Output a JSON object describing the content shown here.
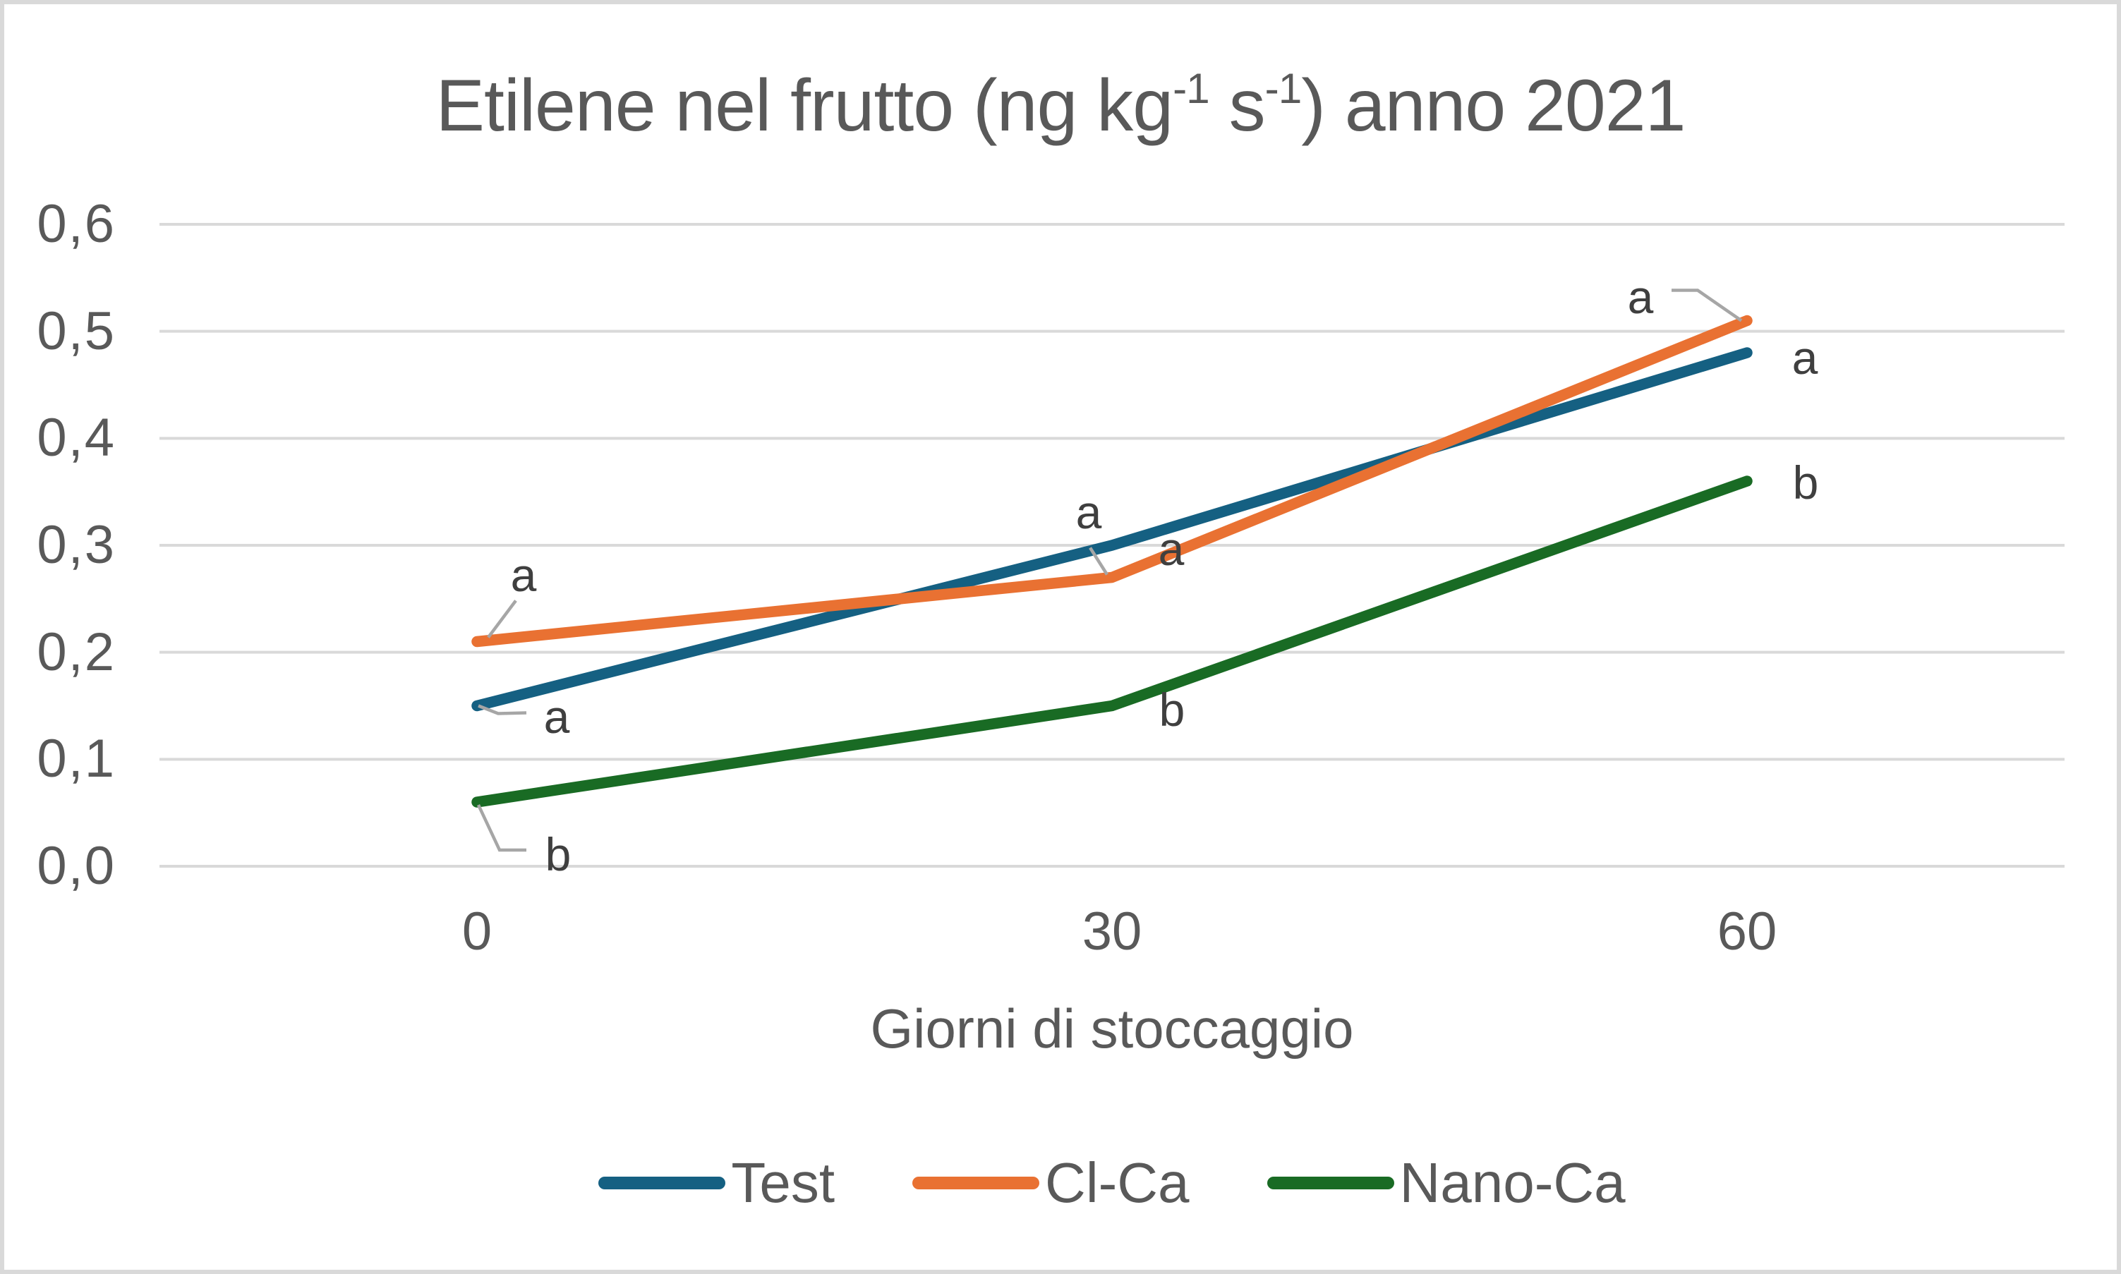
{
  "title": {
    "prefix": "Etilene nel frutto (ng kg",
    "sup1": "-1",
    "mid": " s",
    "sup2": "-1",
    "suffix": ") anno 2021"
  },
  "colors": {
    "accent_blue": "#156082",
    "accent_orange": "#E97132",
    "accent_green": "#196B24",
    "text": "#595959",
    "annotation_text": "#3F3F3F",
    "gridline": "#D9D9D9",
    "leader_line": "#A6A6A6",
    "border": "#D9D9D9",
    "background": "#FFFFFF"
  },
  "chart_data": {
    "type": "line",
    "title": "Etilene nel frutto (ng kg-1 s-1) anno 2021",
    "xlabel": "Giorni di stoccaggio",
    "ylabel": "",
    "categories": [
      0,
      30,
      60
    ],
    "x_tick_labels": [
      "0",
      "30",
      "60"
    ],
    "ylim": [
      0,
      0.6
    ],
    "ytick_interval": 0.1,
    "ytick_labels": [
      "0,0",
      "0,1",
      "0,2",
      "0,3",
      "0,4",
      "0,5",
      "0,6"
    ],
    "decimal_separator": ",",
    "grid": true,
    "legend_position": "bottom",
    "series": [
      {
        "name": "Test",
        "color": "#156082",
        "values": [
          0.15,
          0.3,
          0.48
        ],
        "significance_labels": [
          "a",
          "a",
          "a"
        ]
      },
      {
        "name": "Cl-Ca",
        "color": "#E97132",
        "values": [
          0.21,
          0.27,
          0.51
        ],
        "significance_labels": [
          "a",
          "a",
          "a"
        ]
      },
      {
        "name": "Nano-Ca",
        "color": "#196B24",
        "values": [
          0.06,
          0.15,
          0.36
        ],
        "significance_labels": [
          "b",
          "b",
          "b"
        ]
      }
    ]
  }
}
